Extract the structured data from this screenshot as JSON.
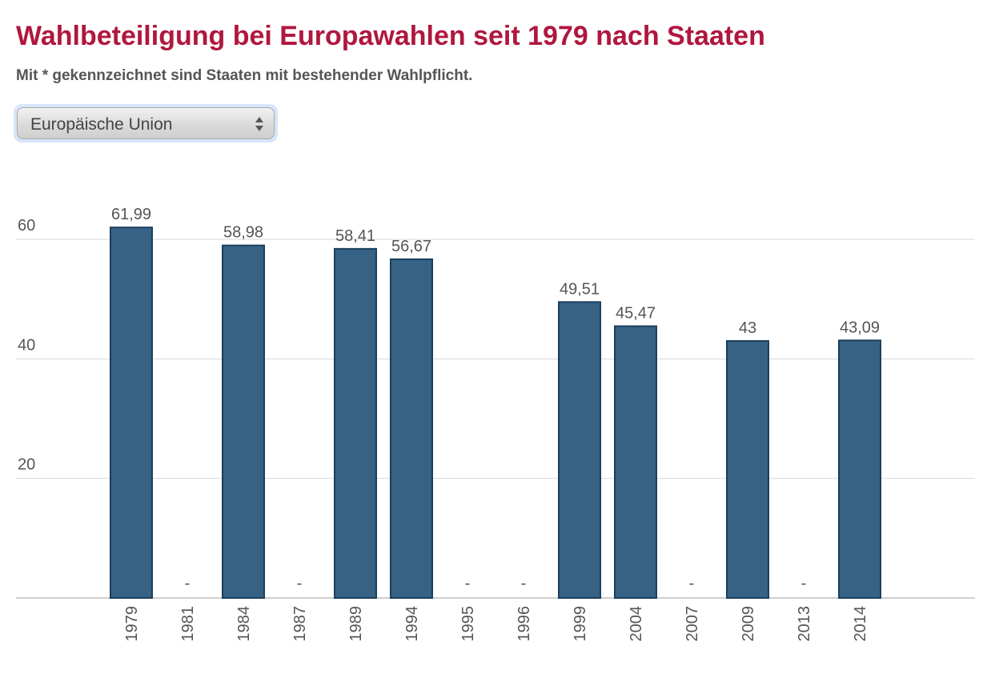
{
  "header": {
    "title": "Wahlbeteiligung bei Europawahlen seit 1979 nach Staaten",
    "subtitle": "Mit * gekennzeichnet sind Staaten mit bestehender Wahlpflicht."
  },
  "selector": {
    "selected": "Europäische Union"
  },
  "colors": {
    "bar": "#356285",
    "bar_border": "#1c3f5c",
    "title": "#b0173f",
    "grid": "#d9d9d9"
  },
  "chart_data": {
    "type": "bar",
    "categories": [
      "1979",
      "1981",
      "1984",
      "1987",
      "1989",
      "1994",
      "1995",
      "1996",
      "1999",
      "2004",
      "2007",
      "2009",
      "2013",
      "2014"
    ],
    "values": [
      61.99,
      null,
      58.98,
      null,
      58.41,
      56.67,
      null,
      null,
      49.51,
      45.47,
      null,
      43,
      null,
      43.09
    ],
    "data_labels": [
      "61,99",
      "-",
      "58,98",
      "-",
      "58,41",
      "56,67",
      "-",
      "-",
      "49,51",
      "45,47",
      "-",
      "43",
      "-",
      "43,09"
    ],
    "yticks": [
      20,
      40,
      60
    ],
    "ylim": [
      0,
      60
    ],
    "grid": true
  }
}
